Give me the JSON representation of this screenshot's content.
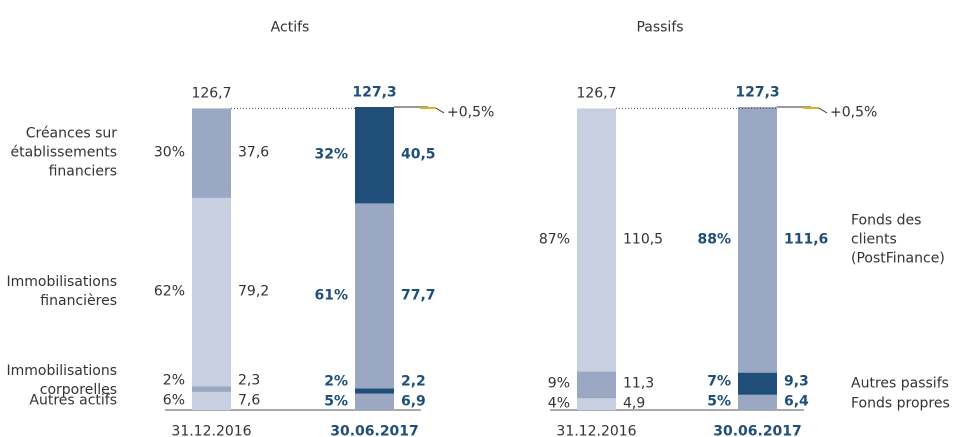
{
  "chart_data": [
    {
      "type": "bar",
      "stacked": true,
      "title": "Actifs",
      "legend": "left",
      "emphasis": 1,
      "emphasis_color": "#1f4e79",
      "categories": [
        "31.12.2016",
        "30.06.2017"
      ],
      "totals": [
        126.7,
        127.3
      ],
      "total_labels": [
        "126,7",
        "127,3"
      ],
      "change": 0.5,
      "change_label": "+0,5%",
      "series": [
        {
          "name": "Autres actifs",
          "colors": [
            "#c8cfe0",
            "#9aa8c4"
          ],
          "values": [
            7.6,
            6.9
          ],
          "value_labels": [
            "7,6",
            "6,9"
          ],
          "shares": [
            6,
            5
          ],
          "share_labels": [
            "6%",
            "5%"
          ]
        },
        {
          "name": "Immobilisations\ncorporelles",
          "colors": [
            "#9aa8c4",
            "#1f4e79"
          ],
          "values": [
            2.3,
            2.2
          ],
          "value_labels": [
            "2,3",
            "2,2"
          ],
          "shares": [
            2,
            2
          ],
          "share_labels": [
            "2%",
            "2%"
          ]
        },
        {
          "name": "Immobilisations\nfinancières",
          "colors": [
            "#c8cfe0",
            "#9aa8c4"
          ],
          "values": [
            79.2,
            77.7
          ],
          "value_labels": [
            "79,2",
            "77,7"
          ],
          "shares": [
            62,
            61
          ],
          "share_labels": [
            "62%",
            "61%"
          ]
        },
        {
          "name": "Créances sur\nétablissements\nfinanciers",
          "colors": [
            "#9aa8c4",
            "#1f4e79"
          ],
          "values": [
            37.6,
            40.5
          ],
          "value_labels": [
            "37,6",
            "40,5"
          ],
          "shares": [
            30,
            32
          ],
          "share_labels": [
            "30%",
            "32%"
          ]
        }
      ]
    },
    {
      "type": "bar",
      "stacked": true,
      "title": "Passifs",
      "legend": "right",
      "emphasis": 1,
      "emphasis_color": "#1f4e79",
      "categories": [
        "31.12.2016",
        "30.06.2017"
      ],
      "totals": [
        126.7,
        127.3
      ],
      "total_labels": [
        "126,7",
        "127,3"
      ],
      "change": 0.5,
      "change_label": "+0,5%",
      "series": [
        {
          "name": "Fonds propres",
          "colors": [
            "#c8cfe0",
            "#9aa8c4"
          ],
          "values": [
            4.9,
            6.4
          ],
          "value_labels": [
            "4,9",
            "6,4"
          ],
          "shares": [
            4,
            5
          ],
          "share_labels": [
            "4%",
            "5%"
          ]
        },
        {
          "name": "Autres passifs",
          "colors": [
            "#9aa8c4",
            "#1f4e79"
          ],
          "values": [
            11.3,
            9.3
          ],
          "value_labels": [
            "11,3",
            "9,3"
          ],
          "shares": [
            9,
            7
          ],
          "share_labels": [
            "9%",
            "7%"
          ]
        },
        {
          "name": "Fonds des clients\n(PostFinance)",
          "colors": [
            "#c8cfe0",
            "#9aa8c4"
          ],
          "values": [
            110.5,
            111.6
          ],
          "value_labels": [
            "110,5",
            "111,6"
          ],
          "shares": [
            87,
            88
          ],
          "share_labels": [
            "87%",
            "88%"
          ]
        }
      ]
    }
  ]
}
